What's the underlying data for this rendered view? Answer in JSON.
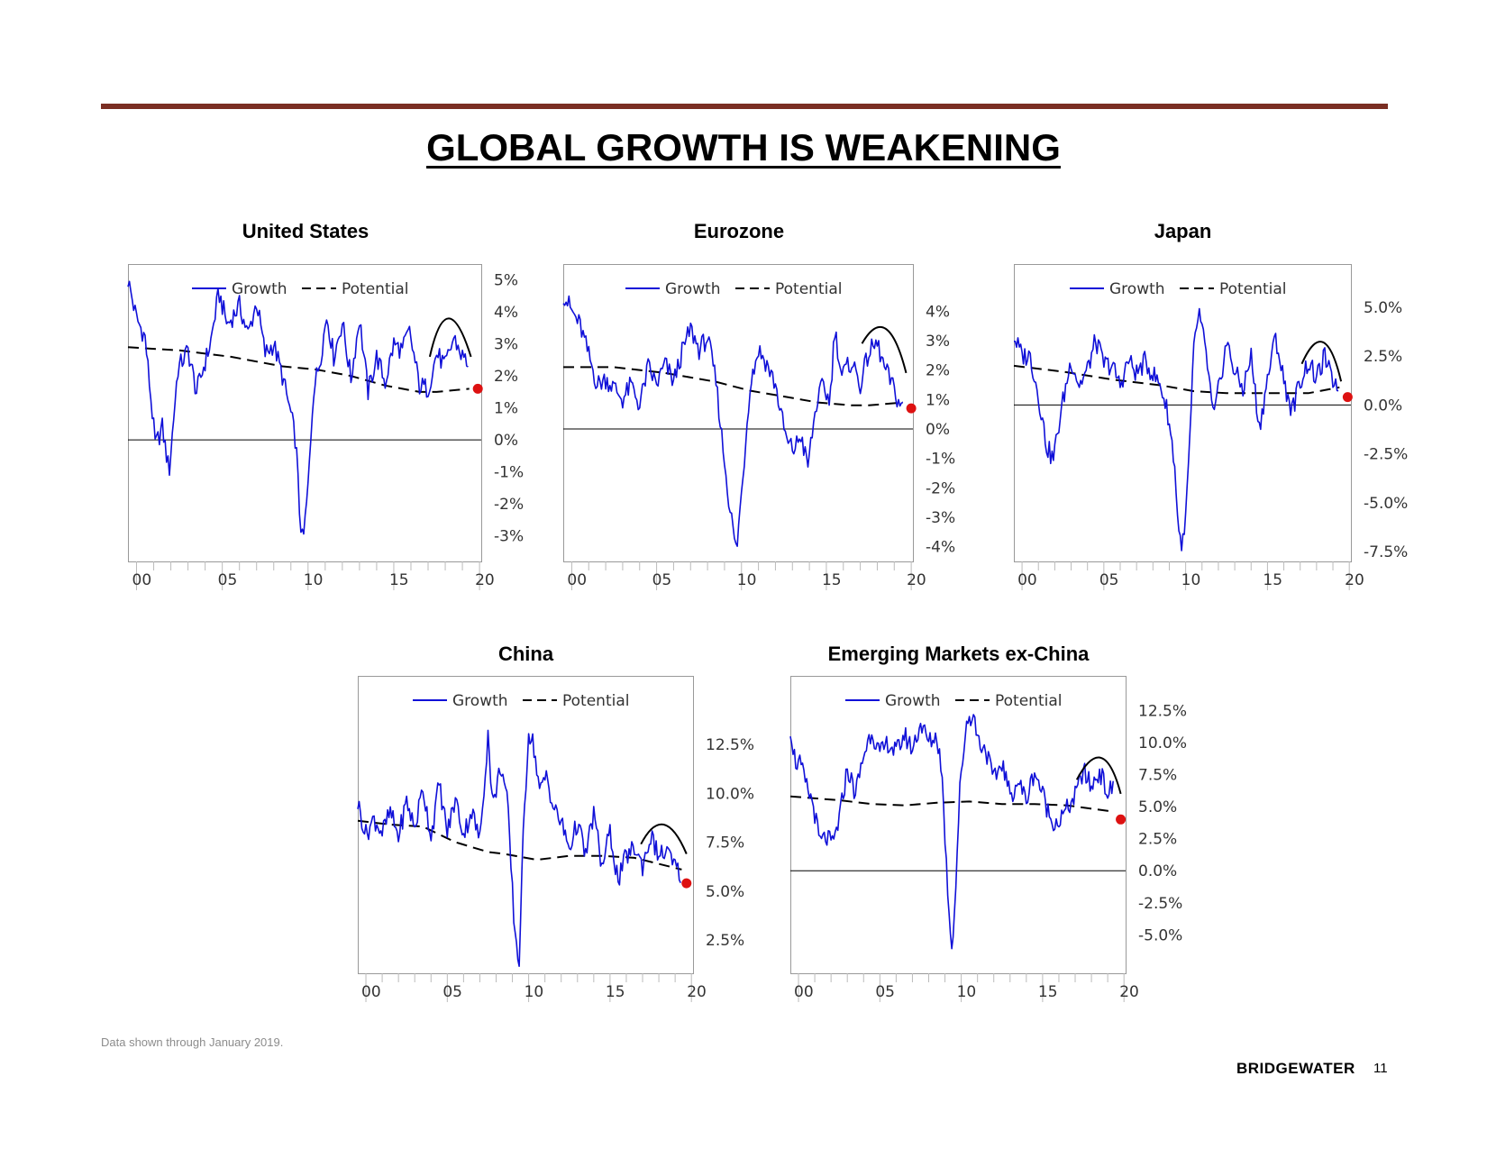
{
  "page": {
    "title": "GLOBAL GROWTH IS WEAKENING",
    "footnote": "Data shown through January 2019.",
    "brand": "BRIDGEWATER",
    "page_number": "11"
  },
  "colors": {
    "growth": "#1010d8",
    "potential": "#000000",
    "dot": "#dd1111",
    "rule": "#7a2e23",
    "axis": "#999999"
  },
  "chart_data": [
    {
      "type": "line",
      "title": "United States",
      "legend": [
        "Growth",
        "Potential"
      ],
      "y_unit": "%",
      "y_decimals": 0,
      "ylim": [
        -3.8,
        5.5
      ],
      "yticks": [
        5,
        4,
        3,
        2,
        1,
        0,
        -1,
        -2,
        -3
      ],
      "x_range": [
        1999,
        2019.6
      ],
      "xtick_labels": [
        "00",
        "05",
        "10",
        "15",
        "20"
      ],
      "growth": [
        [
          1999,
          5.0
        ],
        [
          1999.5,
          3.8
        ],
        [
          2000,
          3.2
        ],
        [
          2000.6,
          -0.2
        ],
        [
          2001,
          0.4
        ],
        [
          2001.4,
          -1.0
        ],
        [
          2001.9,
          2.2
        ],
        [
          2002.5,
          2.8
        ],
        [
          2003,
          1.5
        ],
        [
          2003.8,
          3.0
        ],
        [
          2004.3,
          4.6
        ],
        [
          2004.8,
          3.6
        ],
        [
          2005.5,
          4.2
        ],
        [
          2006,
          3.3
        ],
        [
          2006.5,
          4.3
        ],
        [
          2007,
          2.7
        ],
        [
          2007.5,
          3.0
        ],
        [
          2008,
          2.0
        ],
        [
          2008.5,
          0.8
        ],
        [
          2008.8,
          -0.1
        ],
        [
          2009.0,
          -2.2
        ],
        [
          2009.2,
          -3.3
        ],
        [
          2009.5,
          -1.5
        ],
        [
          2009.8,
          1.5
        ],
        [
          2010.2,
          2.5
        ],
        [
          2010.6,
          3.9
        ],
        [
          2011,
          2.6
        ],
        [
          2011.5,
          3.7
        ],
        [
          2012,
          1.9
        ],
        [
          2012.5,
          3.8
        ],
        [
          2013,
          1.5
        ],
        [
          2013.5,
          2.6
        ],
        [
          2014,
          1.8
        ],
        [
          2014.5,
          3.0
        ],
        [
          2015,
          2.8
        ],
        [
          2015.4,
          3.4
        ],
        [
          2016,
          1.7
        ],
        [
          2016.5,
          1.6
        ],
        [
          2017,
          2.7
        ],
        [
          2017.5,
          2.3
        ],
        [
          2018,
          3.2
        ],
        [
          2018.5,
          2.6
        ],
        [
          2018.9,
          2.4
        ]
      ],
      "potential": [
        [
          1999,
          2.9
        ],
        [
          2002,
          2.8
        ],
        [
          2005,
          2.6
        ],
        [
          2008,
          2.3
        ],
        [
          2010,
          2.2
        ],
        [
          2012,
          2.0
        ],
        [
          2014,
          1.7
        ],
        [
          2016,
          1.5
        ],
        [
          2017,
          1.5
        ],
        [
          2018.9,
          1.6
        ]
      ],
      "arc": [
        [
          2016.6,
          2.6
        ],
        [
          2017.7,
          3.8
        ],
        [
          2019.0,
          2.6
        ]
      ],
      "latest_estimate": [
        2019.4,
        1.6
      ]
    },
    {
      "type": "line",
      "title": "Eurozone",
      "legend": [
        "Growth",
        "Potential"
      ],
      "y_unit": "%",
      "y_decimals": 0,
      "ylim": [
        -4.5,
        5.6
      ],
      "yticks": [
        4,
        3,
        2,
        1,
        0,
        -1,
        -2,
        -3,
        -4
      ],
      "x_range": [
        1999,
        2019.6
      ],
      "xtick_labels": [
        "00",
        "05",
        "10",
        "15",
        "20"
      ],
      "growth": [
        [
          1999,
          4.6
        ],
        [
          1999.5,
          4.0
        ],
        [
          2000,
          3.5
        ],
        [
          2000.5,
          2.5
        ],
        [
          2001,
          1.5
        ],
        [
          2001.5,
          1.7
        ],
        [
          2002,
          1.4
        ],
        [
          2002.5,
          1.0
        ],
        [
          2003,
          1.5
        ],
        [
          2003.5,
          0.8
        ],
        [
          2004,
          2.1
        ],
        [
          2004.5,
          1.5
        ],
        [
          2005,
          2.2
        ],
        [
          2005.5,
          1.6
        ],
        [
          2006,
          2.6
        ],
        [
          2006.5,
          3.4
        ],
        [
          2007,
          2.7
        ],
        [
          2007.5,
          3.1
        ],
        [
          2008,
          1.6
        ],
        [
          2008.4,
          -0.6
        ],
        [
          2008.8,
          -2.6
        ],
        [
          2009.2,
          -4.2
        ],
        [
          2009.6,
          -1.5
        ],
        [
          2010,
          1.5
        ],
        [
          2010.5,
          2.7
        ],
        [
          2011,
          2.2
        ],
        [
          2011.5,
          1.5
        ],
        [
          2011.9,
          0.3
        ],
        [
          2012.2,
          -0.5
        ],
        [
          2012.6,
          -0.7
        ],
        [
          2013,
          -0.2
        ],
        [
          2013.4,
          -1.3
        ],
        [
          2013.9,
          0.8
        ],
        [
          2014.3,
          1.5
        ],
        [
          2014.7,
          0.9
        ],
        [
          2015,
          3.4
        ],
        [
          2015.4,
          1.8
        ],
        [
          2016,
          2.3
        ],
        [
          2016.5,
          1.5
        ],
        [
          2017,
          2.6
        ],
        [
          2017.5,
          2.9
        ],
        [
          2017.9,
          2.1
        ],
        [
          2018.3,
          1.6
        ],
        [
          2018.7,
          1.0
        ],
        [
          2019.0,
          0.7
        ]
      ],
      "potential": [
        [
          1999,
          2.1
        ],
        [
          2002,
          2.1
        ],
        [
          2005,
          1.9
        ],
        [
          2008,
          1.6
        ],
        [
          2010,
          1.3
        ],
        [
          2012,
          1.1
        ],
        [
          2014,
          0.9
        ],
        [
          2016,
          0.8
        ],
        [
          2017,
          0.8
        ],
        [
          2019.0,
          0.9
        ]
      ],
      "arc": [
        [
          2016.6,
          2.9
        ],
        [
          2018,
          3.4
        ],
        [
          2019.2,
          1.9
        ]
      ],
      "latest_estimate": [
        2019.5,
        0.7
      ]
    },
    {
      "type": "line",
      "title": "Japan",
      "legend": [
        "Growth",
        "Potential"
      ],
      "y_unit": "%",
      "y_decimals": 1,
      "ylim": [
        -8.0,
        7.2
      ],
      "yticks": [
        5.0,
        2.5,
        0.0,
        -2.5,
        -5.0,
        -7.5
      ],
      "x_range": [
        1999,
        2019.6
      ],
      "xtick_labels": [
        "00",
        "05",
        "10",
        "15",
        "20"
      ],
      "growth": [
        [
          1999,
          3.5
        ],
        [
          1999.5,
          2.5
        ],
        [
          2000,
          2.5
        ],
        [
          2000.5,
          0.5
        ],
        [
          2001,
          -2.1
        ],
        [
          2001.4,
          -2.8
        ],
        [
          2002,
          0.2
        ],
        [
          2002.5,
          2.3
        ],
        [
          2003,
          1.0
        ],
        [
          2003.5,
          1.8
        ],
        [
          2004,
          3.3
        ],
        [
          2004.5,
          2.1
        ],
        [
          2005,
          2.0
        ],
        [
          2005.5,
          1.0
        ],
        [
          2006,
          2.3
        ],
        [
          2006.5,
          1.6
        ],
        [
          2007,
          2.2
        ],
        [
          2007.5,
          1.6
        ],
        [
          2008,
          0.9
        ],
        [
          2008.4,
          -0.4
        ],
        [
          2008.8,
          -2.8
        ],
        [
          2009.1,
          -6.8
        ],
        [
          2009.4,
          -7.1
        ],
        [
          2009.7,
          -2.8
        ],
        [
          2010,
          2.8
        ],
        [
          2010.3,
          4.8
        ],
        [
          2010.8,
          2.3
        ],
        [
          2011.2,
          -0.8
        ],
        [
          2011.6,
          1.2
        ],
        [
          2012,
          3.2
        ],
        [
          2012.5,
          1.7
        ],
        [
          2013,
          0.8
        ],
        [
          2013.5,
          2.5
        ],
        [
          2014,
          -1.2
        ],
        [
          2014.5,
          1.3
        ],
        [
          2015,
          3.5
        ],
        [
          2015.5,
          1.2
        ],
        [
          2016,
          -0.3
        ],
        [
          2016.5,
          1.2
        ],
        [
          2017,
          2.2
        ],
        [
          2017.5,
          1.3
        ],
        [
          2018,
          2.5
        ],
        [
          2018.4,
          1.3
        ],
        [
          2018.9,
          1.1
        ]
      ],
      "potential": [
        [
          1999,
          2.0
        ],
        [
          2002,
          1.7
        ],
        [
          2005,
          1.3
        ],
        [
          2008,
          1.0
        ],
        [
          2010,
          0.7
        ],
        [
          2012,
          0.6
        ],
        [
          2014,
          0.6
        ],
        [
          2016,
          0.6
        ],
        [
          2017,
          0.6
        ],
        [
          2018.9,
          0.9
        ]
      ],
      "arc": [
        [
          2016.6,
          2.1
        ],
        [
          2017.9,
          3.2
        ],
        [
          2019.0,
          1.2
        ]
      ],
      "latest_estimate": [
        2019.4,
        0.4
      ]
    },
    {
      "type": "line",
      "title": "China",
      "legend": [
        "Growth",
        "Potential"
      ],
      "y_unit": "%",
      "y_decimals": 1,
      "ylim": [
        0.8,
        16.0
      ],
      "yticks": [
        12.5,
        10.0,
        7.5,
        5.0,
        2.5
      ],
      "x_range": [
        1999,
        2019.6
      ],
      "xtick_labels": [
        "00",
        "05",
        "10",
        "15",
        "20"
      ],
      "growth": [
        [
          1999,
          9.5
        ],
        [
          1999.5,
          7.9
        ],
        [
          2000,
          8.7
        ],
        [
          2000.5,
          8.0
        ],
        [
          2001,
          9.0
        ],
        [
          2001.5,
          7.8
        ],
        [
          2002,
          9.6
        ],
        [
          2002.5,
          8.2
        ],
        [
          2003,
          10.3
        ],
        [
          2003.5,
          7.8
        ],
        [
          2004,
          10.5
        ],
        [
          2004.5,
          8.0
        ],
        [
          2005,
          9.7
        ],
        [
          2005.5,
          7.9
        ],
        [
          2006,
          9.1
        ],
        [
          2006.5,
          7.6
        ],
        [
          2007,
          13.0
        ],
        [
          2007.3,
          9.3
        ],
        [
          2007.8,
          11.5
        ],
        [
          2008.2,
          9.5
        ],
        [
          2008.6,
          3.5
        ],
        [
          2008.9,
          1.1
        ],
        [
          2009.2,
          8.5
        ],
        [
          2009.5,
          13.2
        ],
        [
          2009.8,
          12.5
        ],
        [
          2010.2,
          10.0
        ],
        [
          2010.6,
          11.0
        ],
        [
          2011,
          9.3
        ],
        [
          2011.5,
          8.5
        ],
        [
          2012,
          7.2
        ],
        [
          2012.5,
          8.5
        ],
        [
          2013,
          6.8
        ],
        [
          2013.5,
          9.0
        ],
        [
          2014,
          6.2
        ],
        [
          2014.5,
          8.0
        ],
        [
          2015,
          5.5
        ],
        [
          2015.5,
          6.8
        ],
        [
          2016,
          7.2
        ],
        [
          2016.5,
          6.3
        ],
        [
          2017,
          7.8
        ],
        [
          2017.5,
          6.8
        ],
        [
          2018,
          7.0
        ],
        [
          2018.5,
          6.2
        ],
        [
          2018.9,
          5.8
        ]
      ],
      "potential": [
        [
          1999,
          8.6
        ],
        [
          2001,
          8.4
        ],
        [
          2003,
          8.3
        ],
        [
          2005,
          7.5
        ],
        [
          2007,
          7.0
        ],
        [
          2008,
          6.9
        ],
        [
          2010,
          6.6
        ],
        [
          2012,
          6.8
        ],
        [
          2014,
          6.8
        ],
        [
          2016,
          6.7
        ],
        [
          2018.9,
          6.1
        ]
      ],
      "arc": [
        [
          2016.4,
          7.4
        ],
        [
          2017.8,
          8.4
        ],
        [
          2019.2,
          6.9
        ]
      ],
      "latest_estimate": [
        2019.2,
        5.4
      ]
    },
    {
      "type": "line",
      "title": "Emerging Markets ex-China",
      "legend": [
        "Growth",
        "Potential"
      ],
      "y_unit": "%",
      "y_decimals": 1,
      "ylim": [
        -8.0,
        15.2
      ],
      "yticks": [
        12.5,
        10.0,
        7.5,
        5.0,
        2.5,
        0.0,
        -2.5,
        -5.0
      ],
      "x_range": [
        1999,
        2019.6
      ],
      "xtick_labels": [
        "00",
        "05",
        "10",
        "15",
        "20"
      ],
      "growth": [
        [
          1999,
          11.2
        ],
        [
          1999.3,
          8.5
        ],
        [
          1999.6,
          8.3
        ],
        [
          2000,
          6.5
        ],
        [
          2000.4,
          5.2
        ],
        [
          2000.8,
          2.2
        ],
        [
          2001.2,
          2.6
        ],
        [
          2001.6,
          2.0
        ],
        [
          2002,
          4.0
        ],
        [
          2002.5,
          8.0
        ],
        [
          2003,
          6.0
        ],
        [
          2003.5,
          9.0
        ],
        [
          2004,
          11.0
        ],
        [
          2004.5,
          9.0
        ],
        [
          2005,
          10.0
        ],
        [
          2005.5,
          9.2
        ],
        [
          2006,
          10.6
        ],
        [
          2006.5,
          9.5
        ],
        [
          2007,
          11.5
        ],
        [
          2007.5,
          10.0
        ],
        [
          2008,
          10.5
        ],
        [
          2008.3,
          8.0
        ],
        [
          2008.6,
          0.0
        ],
        [
          2008.9,
          -6.0
        ],
        [
          2009.1,
          -3.0
        ],
        [
          2009.4,
          6.0
        ],
        [
          2009.8,
          11.5
        ],
        [
          2010.2,
          12.3
        ],
        [
          2010.6,
          10.0
        ],
        [
          2011,
          9.5
        ],
        [
          2011.5,
          7.0
        ],
        [
          2012,
          8.5
        ],
        [
          2012.5,
          5.8
        ],
        [
          2013,
          7.0
        ],
        [
          2013.5,
          5.5
        ],
        [
          2014,
          7.8
        ],
        [
          2014.5,
          6.0
        ],
        [
          2015,
          4.0
        ],
        [
          2015.5,
          3.8
        ],
        [
          2016,
          4.8
        ],
        [
          2016.5,
          5.8
        ],
        [
          2017,
          7.8
        ],
        [
          2017.5,
          6.5
        ],
        [
          2018,
          7.8
        ],
        [
          2018.5,
          6.0
        ],
        [
          2018.9,
          6.6
        ]
      ],
      "potential": [
        [
          1999,
          5.8
        ],
        [
          2002,
          5.5
        ],
        [
          2004,
          5.2
        ],
        [
          2006,
          5.1
        ],
        [
          2008,
          5.3
        ],
        [
          2010,
          5.4
        ],
        [
          2012,
          5.2
        ],
        [
          2014,
          5.2
        ],
        [
          2016,
          5.1
        ],
        [
          2018.9,
          4.6
        ]
      ],
      "arc": [
        [
          2016.6,
          7.1
        ],
        [
          2018.1,
          8.8
        ],
        [
          2019.3,
          6.0
        ]
      ],
      "latest_estimate": [
        2019.3,
        4.0
      ]
    }
  ]
}
